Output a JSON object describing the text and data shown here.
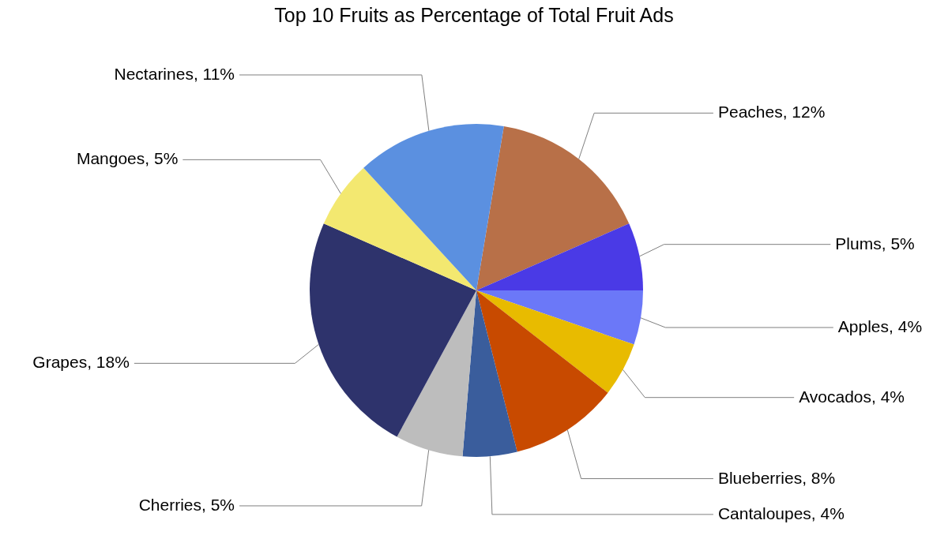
{
  "chart_data": {
    "type": "pie",
    "title": "Top 10 Fruits as Percentage of Total Fruit Ads",
    "categories": [
      "Peaches",
      "Plums",
      "Apples",
      "Avocados",
      "Blueberries",
      "Cantaloupes",
      "Cherries",
      "Grapes",
      "Mangoes",
      "Nectarines"
    ],
    "values": [
      12,
      5,
      4,
      4,
      8,
      4,
      5,
      18,
      5,
      11
    ],
    "colors": [
      "#b87048",
      "#4a3ae6",
      "#6b78f8",
      "#e8bb00",
      "#c84a00",
      "#3a5d9c",
      "#bdbdbd",
      "#2e336c",
      "#f3e870",
      "#5b90e0"
    ],
    "value_labels": [
      "12%",
      "5%",
      "4%",
      "4%",
      "8%",
      "4%",
      "5%",
      "18%",
      "5%",
      "11%"
    ]
  }
}
